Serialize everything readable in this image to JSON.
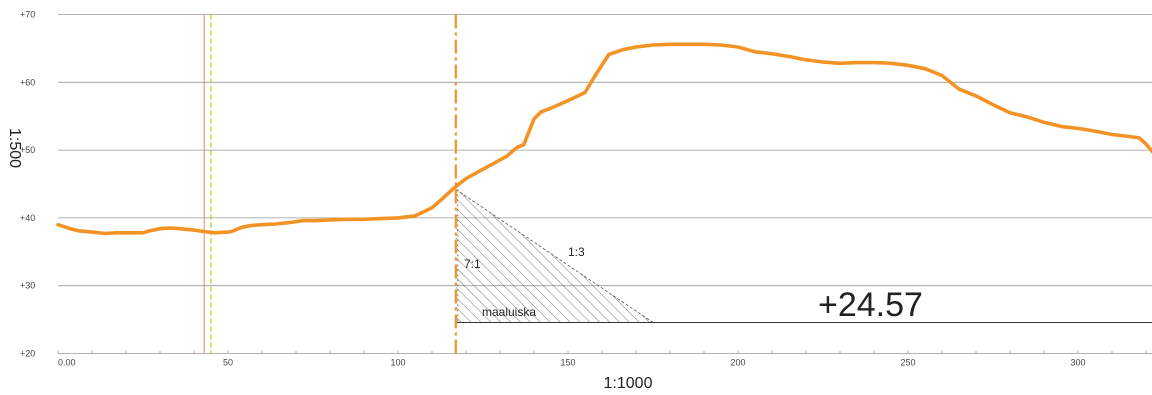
{
  "chart_data": {
    "type": "line",
    "title": "",
    "xlabel": "1:1000",
    "ylabel": "1:500",
    "xlim": [
      0,
      322
    ],
    "ylim": [
      20,
      70
    ],
    "grid": "horizontal",
    "x_ticks": [
      "0.00",
      "50",
      "100",
      "150",
      "200",
      "250",
      "300"
    ],
    "x_tick_values": [
      0,
      50,
      100,
      150,
      200,
      250,
      300
    ],
    "y_ticks": [
      "+20",
      "+30",
      "+40",
      "+50",
      "+60",
      "+70"
    ],
    "y_tick_values": [
      20,
      30,
      40,
      50,
      60,
      70
    ],
    "profile_color": "#F39325",
    "series": [
      {
        "x": [
          0,
          3,
          6,
          10,
          14,
          17,
          20,
          25,
          27,
          30,
          33,
          36,
          40,
          43,
          46,
          50,
          51,
          54,
          57,
          60,
          64,
          68,
          72,
          76,
          80,
          85,
          90,
          95,
          100,
          105,
          110,
          113,
          116,
          118,
          120,
          124,
          128,
          132,
          135,
          137,
          140,
          142,
          145,
          150,
          155,
          158,
          162,
          166,
          170,
          175,
          180,
          185,
          190,
          195,
          200,
          205,
          210,
          215,
          220,
          225,
          230,
          235,
          240,
          245,
          250,
          255,
          260,
          265,
          270,
          275,
          280,
          285,
          290,
          295,
          300,
          305,
          310,
          315,
          318,
          320,
          322
        ],
        "y": [
          39.0,
          38.5,
          38.1,
          37.9,
          37.7,
          37.8,
          37.8,
          37.8,
          38.1,
          38.4,
          38.5,
          38.4,
          38.2,
          38.0,
          37.8,
          37.9,
          38.0,
          38.6,
          38.9,
          39.0,
          39.1,
          39.3,
          39.6,
          39.6,
          39.7,
          39.8,
          39.8,
          39.9,
          40.0,
          40.3,
          41.5,
          42.8,
          44.2,
          45.0,
          45.8,
          46.9,
          48.0,
          49.1,
          50.4,
          50.8,
          54.6,
          55.6,
          56.2,
          57.3,
          58.5,
          61.0,
          64.1,
          64.8,
          65.2,
          65.5,
          65.6,
          65.6,
          65.6,
          65.5,
          65.2,
          64.5,
          64.2,
          63.8,
          63.3,
          63.0,
          62.8,
          62.9,
          62.9,
          62.8,
          62.5,
          62.0,
          61.0,
          59.0,
          58.0,
          56.7,
          55.5,
          54.9,
          54.1,
          53.5,
          53.2,
          52.8,
          52.3,
          52.0,
          51.8,
          50.9,
          49.7
        ]
      }
    ],
    "reference_lines": [
      {
        "x": 43,
        "color": "#E8874F",
        "style": "solid"
      },
      {
        "x": 45,
        "color": "#B4D235",
        "style": "dashed"
      },
      {
        "x": 117,
        "color": "#F39325",
        "style": "dashdot"
      }
    ],
    "design_level": {
      "value": 24.57,
      "label": "+24.57",
      "x_start": 117,
      "x_end": 322
    },
    "slope_wedge": {
      "x_top": 117,
      "y_top": 44.2,
      "x_bottom": 175,
      "y_bottom": 24.57
    },
    "annotations": {
      "front_ratio": "7:1",
      "back_ratio": "1:3",
      "wedge_label": "maaluiska",
      "level_label": "+24.57"
    }
  }
}
